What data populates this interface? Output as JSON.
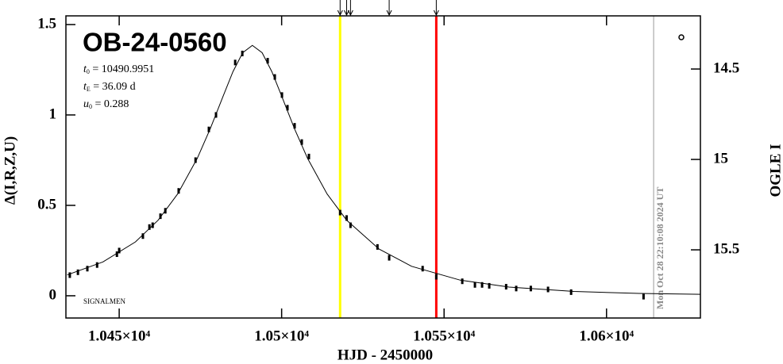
{
  "chart_data": {
    "type": "scatter",
    "title": "OB-24-0560",
    "parameters": [
      {
        "symbol": "t",
        "sub": "0",
        "text": " = 10490.9951"
      },
      {
        "symbol": "t",
        "sub": "E",
        "text": " = 36.09 d"
      },
      {
        "symbol": "u",
        "sub": "0",
        "text": " = 0.288"
      }
    ],
    "corner_label": "SIGNALMEN",
    "timestamp": "Mon Oct 28 22:10:08 2024 UT",
    "xlabel": "HJD - 2450000",
    "ylabel": "Δ(I,R,Z,U)",
    "y2label": "OGLE I",
    "xlim": [
      10433.6,
      10628.9
    ],
    "xticks": [
      {
        "value": 10450,
        "label": "1.045×10⁴"
      },
      {
        "value": 10500,
        "label": "1.05×10⁴"
      },
      {
        "value": 10550,
        "label": "1.055×10⁴"
      },
      {
        "value": 10600,
        "label": "1.06×10⁴"
      }
    ],
    "ylim": [
      -0.123,
      1.548
    ],
    "yticks": [
      0,
      0.5,
      1,
      1.5
    ],
    "y2lim": [
      15.877,
      14.206
    ],
    "y2ticks": [
      14.5,
      15,
      15.5
    ],
    "color": "#000000",
    "x": [
      10434.8,
      10437.3,
      10440.2,
      10443.2,
      10449.3,
      10450.0,
      10457.3,
      10459.3,
      10460.3,
      10462.7,
      10464.2,
      10468.3,
      10473.5,
      10477.6,
      10479.8,
      10485.7,
      10487.9,
      10495.7,
      10497.9,
      10500.1,
      10501.8,
      10504.0,
      10506.2,
      10508.4,
      10518.0,
      10520.0,
      10521.2,
      10529.5,
      10533.1,
      10543.4,
      10547.6,
      10555.6,
      10559.5,
      10561.7,
      10563.9,
      10569.1,
      10572.2,
      10576.7,
      10582.0,
      10589.1,
      10611.4
    ],
    "values": [
      0.114,
      0.13,
      0.15,
      0.17,
      0.23,
      0.25,
      0.33,
      0.38,
      0.39,
      0.44,
      0.47,
      0.58,
      0.75,
      0.92,
      1.0,
      1.29,
      1.34,
      1.3,
      1.21,
      1.11,
      1.04,
      0.94,
      0.85,
      0.77,
      0.46,
      0.43,
      0.39,
      0.27,
      0.21,
      0.15,
      0.105,
      0.08,
      0.06,
      0.06,
      0.055,
      0.05,
      0.04,
      0.04,
      0.035,
      0.02,
      -0.005
    ],
    "model": {
      "color": "#000000",
      "x": [
        10434,
        10445,
        10455,
        10462,
        10468,
        10474,
        10478,
        10482,
        10485,
        10488,
        10491,
        10494,
        10497,
        10500,
        10504,
        10508,
        10514,
        10520,
        10530,
        10540,
        10555,
        10570,
        10590,
        10610,
        10629
      ],
      "values": [
        0.115,
        0.187,
        0.298,
        0.418,
        0.563,
        0.759,
        0.922,
        1.104,
        1.239,
        1.344,
        1.385,
        1.344,
        1.239,
        1.104,
        0.922,
        0.759,
        0.563,
        0.418,
        0.258,
        0.163,
        0.086,
        0.048,
        0.024,
        0.013,
        0.008
      ]
    },
    "vlines": [
      {
        "x": 10518.0,
        "color": "#ffff00"
      },
      {
        "x": 10547.6,
        "color": "#ff0000"
      },
      {
        "x": 10614.5,
        "color": "#999999"
      }
    ],
    "arrows": [
      10518.0,
      10520.0,
      10521.2,
      10533.1,
      10547.6
    ]
  }
}
